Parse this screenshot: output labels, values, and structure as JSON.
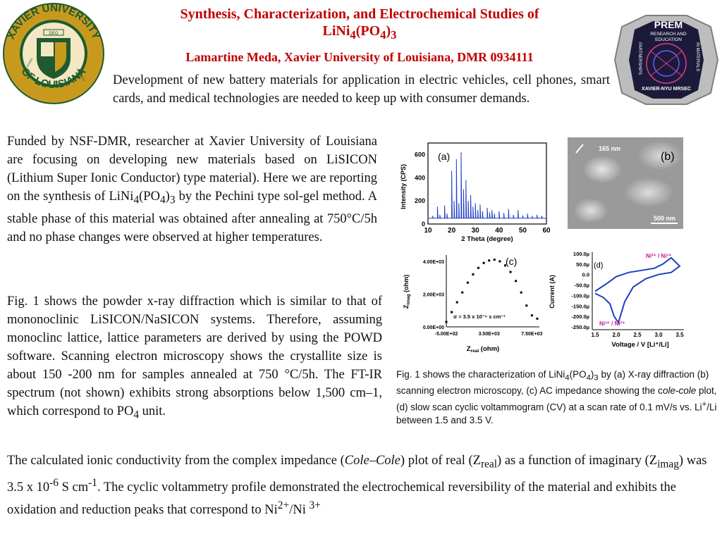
{
  "header": {
    "title_line1": "Synthesis, Characterization, and Electrochemical Studies of",
    "title_line2_main": "LiNi",
    "title_line2_sub1": "4",
    "title_line2_mid": "(PO",
    "title_line2_sub2": "4",
    "title_line2_end": ")",
    "title_line2_sub3": "3",
    "author": "Lamartine Meda, Xavier University of Louisiana, DMR 0934111"
  },
  "logos": {
    "left_seal": {
      "ring_top": "XAVIER UNIVERSITY",
      "ring_bottom": "OF LOUISIANA",
      "banner": "DEO",
      "side_left": "LOUISIANA",
      "side_right": "INSTITUTA",
      "colors": {
        "gold": "#c79a1e",
        "green": "#1e5b2e",
        "cream": "#f3e7c4"
      }
    },
    "right_badge": {
      "title": "PREM",
      "subtitle1": "RESEARCH AND",
      "subtitle2": "EDUCATION",
      "side_left": "PARTNERSHIPS",
      "side_right": "IN MATERIALS",
      "bottom": "XAVIER-NYU MRSEC",
      "colors": {
        "frame": "#7f7f7f",
        "bg": "#1c1a3a",
        "accent": "#e23a8c"
      }
    }
  },
  "intro": "Development of new battery materials for application in electric vehicles, cell phones, smart cards, and medical technologies are needed to keep up with consumer demands.",
  "para1": {
    "a": "Funded by NSF-DMR, researcher at Xavier University of Louisiana are focusing on developing new materials based on LiSICON (Lithium Super Ionic Conductor) type material). Here we are reporting on the synthesis of LiNi",
    "sub1": "4",
    "b": "(PO",
    "sub2": "4",
    "c": ")",
    "sub3": "3",
    "d": " by the Pechini type sol-gel method. A stable phase of this material was obtained after annealing at 750°C/5h and no phase changes were observed at higher temperatures."
  },
  "para2": {
    "a": "Fig. 1 shows the powder x-ray diffraction which is similar to that of mononoclinic LiSICON/NaSICON systems. Therefore, assuming monoclinc lattice, lattice parameters are derived by using the POWD software. Scanning electron microscopy shows the crystallite size is about 150 -200 nm for samples annealed at 750 °C/5h. The FT-IR spectrum (not shown) exhibits strong absorptions below 1,500 cm–1, which correspond to PO",
    "sub": "4",
    "b": " unit."
  },
  "para3": {
    "a": "The calculated ionic conductivity from the complex impedance (",
    "italic": "Cole–Cole",
    "b": ") plot of real (Z",
    "sub1": "real",
    "c": ") as a function of imaginary (Z",
    "sub2": "imag",
    "d": ") was 3.5 x 10",
    "sup1": "-6",
    "e": " S cm",
    "sup2": "-1",
    "f": ". The cyclic voltammetry profile demonstrated the electrochemical reversibility of the material and exhibits the oxidation and reduction peaks that correspond to Ni",
    "sup3": "2+",
    "g": "/Ni ",
    "sup4": "3+"
  },
  "caption": {
    "a": "Fig. 1 shows the characterization of  LiNi",
    "sub1": "4",
    "b": "(PO",
    "sub2": "4",
    "c": ")",
    "sub3": "3",
    "d": " by (a) X-ray diffraction (b) scanning electron microscopy, (c) AC impedance showing the c",
    "italic": "ole-cole",
    "e": " plot, (d) slow scan cyclic voltammogram (CV) at a scan rate of 0.1 mV/s vs. Li",
    "sup": "+",
    "f": "/Li between 1.5  and 3.5 V."
  },
  "figures": {
    "a": {
      "label": "(a)",
      "ylabel": "Intensity (CPS)",
      "xlabel": "2 Theta (degree)",
      "xticks": [
        "10",
        "20",
        "30",
        "40",
        "50",
        "60"
      ],
      "yticks": [
        "0",
        "200",
        "400",
        "600"
      ],
      "color": "#1f3fbf"
    },
    "b": {
      "label": "(b)",
      "scale_top": "165 nm",
      "scale_bottom": "500 nm"
    },
    "c": {
      "label": "(c)",
      "ylabel_main": "Z",
      "ylabel_sub": "imag",
      "ylabel_unit": " (ohm)",
      "xlabel_main": "Z",
      "xlabel_sub": "real",
      "xlabel_unit": " (ohm)",
      "yticks": [
        "0.00E+00",
        "2.00E+03",
        "4.00E+03"
      ],
      "xticks": [
        "-5.00E+02",
        "3.50E+03",
        "7.50E+03"
      ],
      "annotation": "σ = 3.5 x 10⁻⁶ s cm⁻¹"
    },
    "d": {
      "label": "(d)",
      "ylabel": "Current (A)",
      "xlabel": "Voltage / V [Li⁺/Li]",
      "yticks": [
        "100.0µ",
        "50.0µ",
        "0.0",
        "-50.0µ",
        "-100.0µ",
        "-150.0µ",
        "-200.0µ",
        "-250.0µ"
      ],
      "xticks": [
        "1.5",
        "2.0",
        "2.5",
        "3.0",
        "3.5"
      ],
      "peak_ox": "Ni²⁺ / Ni³⁺",
      "peak_red": "Ni³⁺ / Ni²⁺",
      "color": "#1f3fbf",
      "label_color": "#c0208f"
    }
  },
  "chart_data": [
    {
      "type": "line",
      "id": "xrd",
      "x": [
        10,
        12,
        14,
        15,
        17,
        18,
        20,
        21,
        22,
        23,
        24,
        25,
        26,
        27,
        28,
        29,
        30,
        31,
        32,
        33,
        35,
        36,
        37,
        38,
        40,
        42,
        44,
        46,
        48,
        50,
        52,
        54,
        56,
        58,
        60
      ],
      "y": [
        60,
        70,
        150,
        80,
        160,
        90,
        460,
        200,
        560,
        180,
        620,
        300,
        380,
        200,
        250,
        150,
        180,
        120,
        170,
        110,
        140,
        100,
        120,
        90,
        110,
        95,
        130,
        80,
        120,
        75,
        90,
        70,
        80,
        70,
        65
      ],
      "xlim": [
        10,
        60
      ],
      "ylim": [
        0,
        700
      ],
      "xlabel": "2 Theta (degree)",
      "ylabel": "Intensity (CPS)"
    },
    {
      "type": "scatter",
      "id": "impedance",
      "x": [
        -500,
        0,
        500,
        1000,
        1500,
        2000,
        2500,
        3000,
        3500,
        4000,
        4500,
        5000,
        5500,
        6000,
        6500,
        7000,
        7500,
        8000
      ],
      "y": [
        300,
        900,
        1500,
        2100,
        2700,
        3200,
        3600,
        3900,
        4050,
        4100,
        4000,
        3750,
        3350,
        2800,
        2100,
        1300,
        700,
        500
      ],
      "xlim": [
        -500,
        8200
      ],
      "ylim": [
        0,
        4300
      ],
      "xlabel": "Zreal (ohm)",
      "ylabel": "Zimag (ohm)"
    },
    {
      "type": "line",
      "id": "cv",
      "x": [
        1.5,
        1.8,
        2.0,
        2.3,
        2.6,
        2.9,
        3.1,
        3.3,
        3.5,
        3.3,
        3.0,
        2.7,
        2.4,
        2.2,
        2.05,
        1.95,
        1.85,
        1.7,
        1.5
      ],
      "y": [
        -80,
        -40,
        -10,
        10,
        20,
        30,
        50,
        80,
        40,
        10,
        0,
        -20,
        -60,
        -130,
        -230,
        -200,
        -140,
        -110,
        -90
      ],
      "xlim": [
        1.5,
        3.5
      ],
      "ylim": [
        -250,
        100
      ],
      "xlabel": "Voltage / V [Li+/Li]",
      "ylabel": "Current (A)"
    }
  ]
}
